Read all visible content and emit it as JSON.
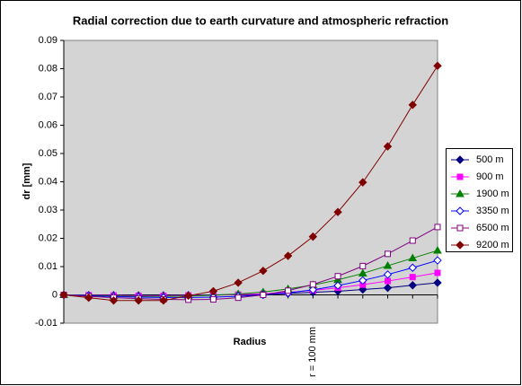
{
  "chart_data": {
    "type": "line",
    "title": "Radial correction due to earth curvature and  atmospheric refraction",
    "x_label": "Radius",
    "y_label": "dr [mm]",
    "categories": [
      null,
      null,
      null,
      null,
      null,
      null,
      null,
      null,
      null,
      null,
      "r = 100 mm",
      null,
      null,
      null,
      null,
      null
    ],
    "ylim": [
      -0.01,
      0.09
    ],
    "yticks": [
      -0.01,
      0,
      0.01,
      0.02,
      0.03,
      0.04,
      0.05,
      0.06,
      0.07,
      0.08,
      0.09
    ],
    "grid": false,
    "legend": "right",
    "series": [
      {
        "name": "500 m",
        "color": "#000080",
        "marker": "diamond",
        "filled": true,
        "values": [
          0,
          -0.0001,
          -0.0001,
          -0.0002,
          -0.0002,
          -0.0001,
          0,
          0.0001,
          0.0002,
          0.0005,
          0.0009,
          0.0013,
          0.0019,
          0.0025,
          0.0034,
          0.0043
        ]
      },
      {
        "name": "900 m",
        "color": "#ff00ff",
        "marker": "square",
        "filled": true,
        "values": [
          0,
          -0.0001,
          -0.0002,
          -0.0003,
          -0.0003,
          -0.0002,
          -0.0001,
          0.0001,
          0.0004,
          0.0009,
          0.0016,
          0.0025,
          0.0036,
          0.0049,
          0.0063,
          0.0078
        ]
      },
      {
        "name": "1900 m",
        "color": "#008000",
        "marker": "triangle",
        "filled": true,
        "values": [
          0,
          -0.0002,
          -0.0004,
          -0.0005,
          -0.0005,
          -0.0004,
          -0.0001,
          0.0003,
          0.001,
          0.0021,
          0.0035,
          0.0053,
          0.0076,
          0.0103,
          0.013,
          0.0157
        ]
      },
      {
        "name": "3350 m",
        "color": "#0000ff",
        "marker": "diamond",
        "filled": false,
        "values": [
          0,
          -0.0003,
          -0.0006,
          -0.0008,
          -0.0009,
          -0.0009,
          -0.0008,
          -0.0005,
          0,
          0.0007,
          0.0018,
          0.0033,
          0.0051,
          0.0072,
          0.0096,
          0.0122
        ]
      },
      {
        "name": "6500 m",
        "color": "#800080",
        "marker": "square",
        "filled": false,
        "values": [
          0,
          -0.0005,
          -0.001,
          -0.0013,
          -0.0016,
          -0.0017,
          -0.0016,
          -0.001,
          0,
          0.0015,
          0.0037,
          0.0066,
          0.0102,
          0.0145,
          0.0192,
          0.024
        ]
      },
      {
        "name": "9200 m",
        "color": "#800000",
        "marker": "diamond",
        "filled": true,
        "values": [
          0,
          -0.001,
          -0.002,
          -0.002,
          -0.002,
          -0.0003,
          0.0013,
          0.0043,
          0.0085,
          0.0138,
          0.0206,
          0.0293,
          0.0398,
          0.0525,
          0.0672,
          0.081
        ]
      }
    ]
  }
}
